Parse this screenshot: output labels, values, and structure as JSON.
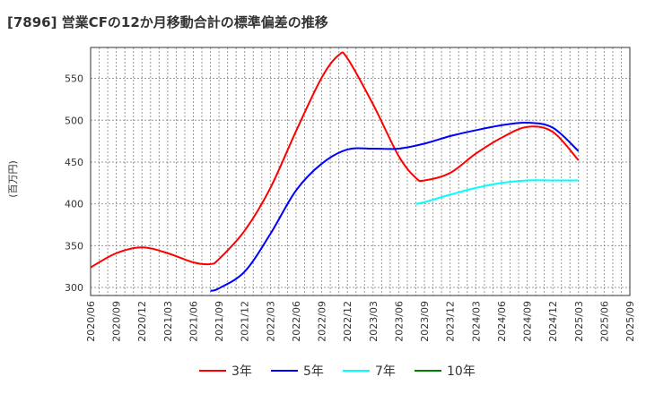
{
  "chart_data": {
    "type": "line",
    "title": "[7896]  営業CFの12か月移動合計の標準偏差の推移",
    "ylabel": "(百万円)",
    "xlabel": "",
    "ylim": [
      290.4,
      587
    ],
    "xlim": [
      "2020/06",
      "2025/09"
    ],
    "yticks": [
      300,
      350,
      400,
      450,
      500,
      550
    ],
    "xticks": [
      "2020/06",
      "2020/09",
      "2020/12",
      "2021/03",
      "2021/06",
      "2021/09",
      "2021/12",
      "2022/03",
      "2022/06",
      "2022/09",
      "2022/12",
      "2023/03",
      "2023/06",
      "2023/09",
      "2023/12",
      "2024/03",
      "2024/06",
      "2024/09",
      "2024/12",
      "2025/03",
      "2025/06",
      "2025/09"
    ],
    "grid": true,
    "legend_position": "bottom",
    "series": [
      {
        "name": "3年",
        "color": "#ff0000",
        "x": [
          "2020/06",
          "2020/09",
          "2020/12",
          "2021/03",
          "2021/06",
          "2021/08",
          "2021/09",
          "2021/12",
          "2022/03",
          "2022/06",
          "2022/09",
          "2022/11",
          "2022/12",
          "2023/03",
          "2023/06",
          "2023/08",
          "2023/09",
          "2023/12",
          "2024/03",
          "2024/06",
          "2024/09",
          "2024/12",
          "2025/03"
        ],
        "values": [
          324,
          341,
          348,
          341,
          330,
          328,
          334,
          368,
          419,
          487,
          551,
          578,
          574,
          519,
          457,
          431,
          428,
          437,
          460,
          479,
          492,
          486,
          452
        ]
      },
      {
        "name": "5年",
        "color": "#0000ff",
        "x": [
          "2021/08",
          "2021/09",
          "2021/12",
          "2022/03",
          "2022/06",
          "2022/09",
          "2022/12",
          "2023/03",
          "2023/06",
          "2023/09",
          "2023/12",
          "2024/03",
          "2024/06",
          "2024/09",
          "2024/12",
          "2025/03"
        ],
        "values": [
          296,
          299,
          319,
          364,
          416,
          448,
          465,
          466,
          466,
          472,
          481,
          488,
          494,
          497,
          491,
          463
        ]
      },
      {
        "name": "7年",
        "color": "#00ffff",
        "x": [
          "2023/08",
          "2023/09",
          "2023/12",
          "2024/03",
          "2024/06",
          "2024/09",
          "2024/12",
          "2025/03"
        ],
        "values": [
          400,
          402,
          411,
          419,
          425,
          428,
          428,
          428
        ]
      },
      {
        "name": "10年",
        "color": "#008000",
        "x": [],
        "values": []
      }
    ]
  }
}
